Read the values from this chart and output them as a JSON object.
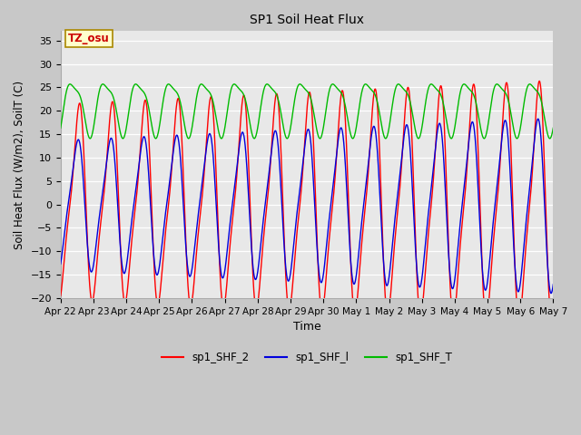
{
  "title": "SP1 Soil Heat Flux",
  "xlabel": "Time",
  "ylabel": "Soil Heat Flux (W/m2), SoilT (C)",
  "ylim": [
    -20,
    37
  ],
  "yticks": [
    -20,
    -15,
    -10,
    -5,
    0,
    5,
    10,
    15,
    20,
    25,
    30,
    35
  ],
  "fig_bg_color": "#c8c8c8",
  "plot_bg_color": "#e8e8e8",
  "line_colors": {
    "sp1_SHF_2": "#ff0000",
    "sp1_SHF_1": "#0000dd",
    "sp1_SHF_T": "#00bb00"
  },
  "tz_label": "TZ_osu",
  "date_labels": [
    "Apr 22",
    "Apr 23",
    "Apr 24",
    "Apr 25",
    "Apr 26",
    "Apr 27",
    "Apr 28",
    "Apr 29",
    "Apr 30",
    "May 1",
    "May 2",
    "May 3",
    "May 4",
    "May 5",
    "May 6",
    "May 7"
  ],
  "date_ticks": [
    0,
    1,
    2,
    3,
    4,
    5,
    6,
    7,
    8,
    9,
    10,
    11,
    12,
    13,
    14,
    15
  ],
  "n_points": 2000
}
